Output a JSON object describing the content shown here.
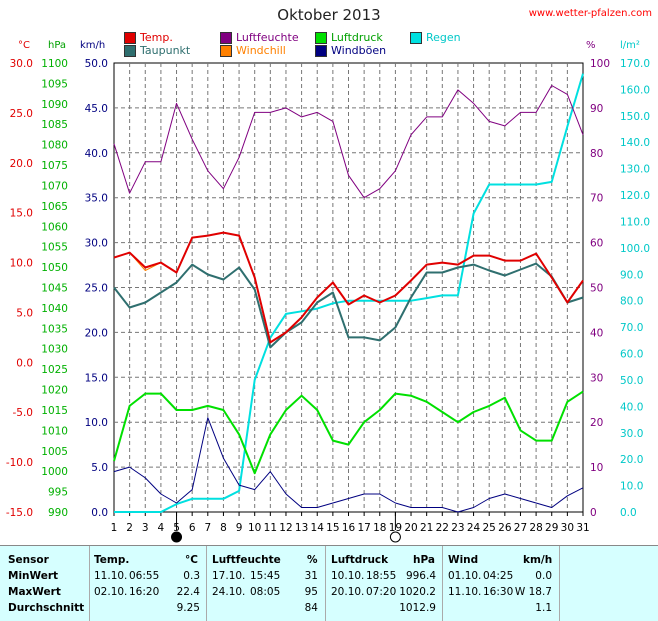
{
  "title": "Oktober 2013",
  "site": "www.wetter-pfalzen.com",
  "legend": [
    {
      "label": "Temp.",
      "color": "#e00000"
    },
    {
      "label": "Taupunkt",
      "color": "#2f6f6f"
    },
    {
      "label": "Luftfeuchte",
      "color": "#800080"
    },
    {
      "label": "Windchill",
      "color": "#ff8000"
    },
    {
      "label": "Luftdruck",
      "color": "#00e000"
    },
    {
      "label": "Windböen",
      "color": "#000080"
    },
    {
      "label": "Regen",
      "color": "#00e0e0"
    }
  ],
  "units": {
    "c": "°C",
    "hpa": "hPa",
    "kmh": "km/h",
    "pct": "%",
    "lm2": "l/m²"
  },
  "colors": {
    "temp": "#e00000",
    "dew": "#2f6f6f",
    "hum": "#800080",
    "press": "#00e000",
    "gust": "#000080",
    "rain": "#00e0e0",
    "chill": "#ff8000"
  },
  "chart_data": {
    "type": "line",
    "title": "Oktober 2013",
    "x": [
      1,
      2,
      3,
      4,
      5,
      6,
      7,
      8,
      9,
      10,
      11,
      12,
      13,
      14,
      15,
      16,
      17,
      18,
      19,
      20,
      21,
      22,
      23,
      24,
      25,
      26,
      27,
      28,
      29,
      30,
      31
    ],
    "axes": {
      "c": {
        "min": -15,
        "max": 30,
        "ticks": [
          "30.0",
          "25.0",
          "20.0",
          "15.0",
          "10.0",
          "5.0",
          "0.0",
          "-5.0",
          "-10.0",
          "-15.0"
        ]
      },
      "hpa": {
        "min": 990,
        "max": 1100,
        "ticks": [
          "1100",
          "1095",
          "1090",
          "1085",
          "1080",
          "1075",
          "1070",
          "1065",
          "1060",
          "1055",
          "1050",
          "1045",
          "1040",
          "1035",
          "1030",
          "1025",
          "1020",
          "1015",
          "1010",
          "1005",
          "1000",
          "995",
          "990"
        ]
      },
      "kmh": {
        "min": 0,
        "max": 50,
        "ticks": [
          "50.0",
          "45.0",
          "40.0",
          "35.0",
          "30.0",
          "25.0",
          "20.0",
          "15.0",
          "10.0",
          "5.0",
          "0.0"
        ]
      },
      "pct": {
        "min": 0,
        "max": 100,
        "ticks": [
          "100",
          "90",
          "80",
          "70",
          "60",
          "50",
          "40",
          "30",
          "20",
          "10",
          "0"
        ]
      },
      "lm2": {
        "min": 0,
        "max": 170,
        "ticks": [
          "170.0",
          "160.0",
          "150.0",
          "140.0",
          "130.0",
          "120.0",
          "110.0",
          "100.0",
          "90.0",
          "80.0",
          "70.0",
          "60.0",
          "50.0",
          "40.0",
          "30.0",
          "20.0",
          "10.0",
          "0.0"
        ]
      }
    },
    "series": [
      {
        "name": "Temp.",
        "axis": "c",
        "color": "#e00000",
        "values": [
          10.5,
          11,
          9.5,
          10,
          9,
          12.5,
          12.7,
          13,
          12.7,
          8.5,
          2,
          3,
          4.5,
          6.5,
          8,
          5.8,
          6.7,
          6,
          6.7,
          8.2,
          9.8,
          10,
          9.8,
          10.7,
          10.7,
          10.2,
          10.2,
          10.9,
          8.5,
          6,
          8.2
        ]
      },
      {
        "name": "Windchill",
        "axis": "c",
        "color": "#ff8000",
        "values": [
          10.5,
          11,
          9.2,
          10,
          9,
          12.5,
          12.7,
          13,
          12.7,
          8.5,
          2,
          3,
          4.5,
          6.5,
          8,
          5.8,
          6.7,
          6,
          6.7,
          8.2,
          9.8,
          10,
          9.8,
          10.7,
          10.7,
          10.2,
          10.2,
          10.9,
          8.5,
          6,
          8.2
        ]
      },
      {
        "name": "Taupunkt",
        "axis": "c",
        "color": "#2f6f6f",
        "values": [
          7.5,
          5.5,
          6,
          7,
          8,
          9.8,
          8.8,
          8.3,
          9.5,
          7.3,
          1.5,
          3,
          4,
          6,
          7,
          2.5,
          2.5,
          2.2,
          3.5,
          6.5,
          9,
          9,
          9.5,
          9.8,
          9.2,
          8.7,
          9.3,
          9.9,
          8.6,
          6,
          6.5
        ]
      },
      {
        "name": "Luftfeuchte",
        "axis": "pct",
        "color": "#800080",
        "values": [
          82,
          71,
          78,
          78,
          91,
          83,
          76,
          72,
          79,
          89,
          89,
          90,
          88,
          89,
          87,
          75,
          70,
          72,
          76,
          84,
          88,
          88,
          94,
          91,
          87,
          86,
          89,
          89,
          95,
          93,
          84
        ]
      },
      {
        "name": "Luftdruck",
        "axis": "hpa",
        "color": "#00e000",
        "values": [
          1002.5,
          1016,
          1019,
          1019,
          1015,
          1015,
          1016,
          1015,
          1009,
          999.5,
          1009,
          1015,
          1018.5,
          1015,
          1007.5,
          1006.5,
          1012,
          1015,
          1019,
          1018.5,
          1017,
          1014.5,
          1012,
          1014.5,
          1016,
          1018,
          1010,
          1007.5,
          1007.5,
          1017,
          1019.5
        ]
      },
      {
        "name": "Windböen",
        "axis": "kmh",
        "color": "#000080",
        "values": [
          4.5,
          5,
          3.8,
          2,
          1,
          2.5,
          10.5,
          6,
          3,
          2.5,
          4.5,
          2,
          0.5,
          0.5,
          1,
          1.5,
          2,
          2,
          1,
          0.5,
          0.5,
          0.5,
          0,
          0.5,
          1.5,
          2,
          1.5,
          1,
          0.5,
          1.8,
          2.7
        ]
      },
      {
        "name": "Regen",
        "axis": "lm2",
        "color": "#00e0e0",
        "values": [
          0,
          0,
          0,
          0,
          3,
          5,
          5,
          5,
          8,
          50,
          66,
          75,
          76,
          77,
          79,
          80,
          80,
          80,
          80,
          80,
          81,
          82,
          82,
          113,
          124,
          124,
          124,
          124,
          125,
          146,
          166
        ]
      }
    ]
  },
  "table": {
    "headers": [
      "Sensor",
      "Temp.",
      "°C",
      "Luftfeuchte",
      "%",
      "Luftdruck",
      "hPa",
      "Wind",
      "km/h"
    ],
    "rows": [
      {
        "label": "MinWert",
        "t_date": "11.10.",
        "t_time": "06:55",
        "t_val": "0.3",
        "h_date": "17.10.",
        "h_time": "15:45",
        "h_val": "31",
        "p_date": "10.10.",
        "p_time": "18:55",
        "p_val": "996.4",
        "w_date": "01.10.",
        "w_time": "04:25",
        "w_val": "0.0"
      },
      {
        "label": "MaxWert",
        "t_date": "02.10.",
        "t_time": "16:20",
        "t_val": "22.4",
        "h_date": "24.10.",
        "h_time": "08:05",
        "h_val": "95",
        "p_date": "20.10.",
        "p_time": "07:20",
        "p_val": "1020.2",
        "w_date": "11.10.",
        "w_time": "16:30",
        "w_val": "W 18.7"
      },
      {
        "label": "Durchschnitt",
        "t_date": "",
        "t_time": "",
        "t_val": "9.25",
        "h_date": "",
        "h_time": "",
        "h_val": "84",
        "p_date": "",
        "p_time": "",
        "p_val": "1012.9",
        "w_date": "",
        "w_time": "",
        "w_val": "1.1"
      }
    ]
  }
}
